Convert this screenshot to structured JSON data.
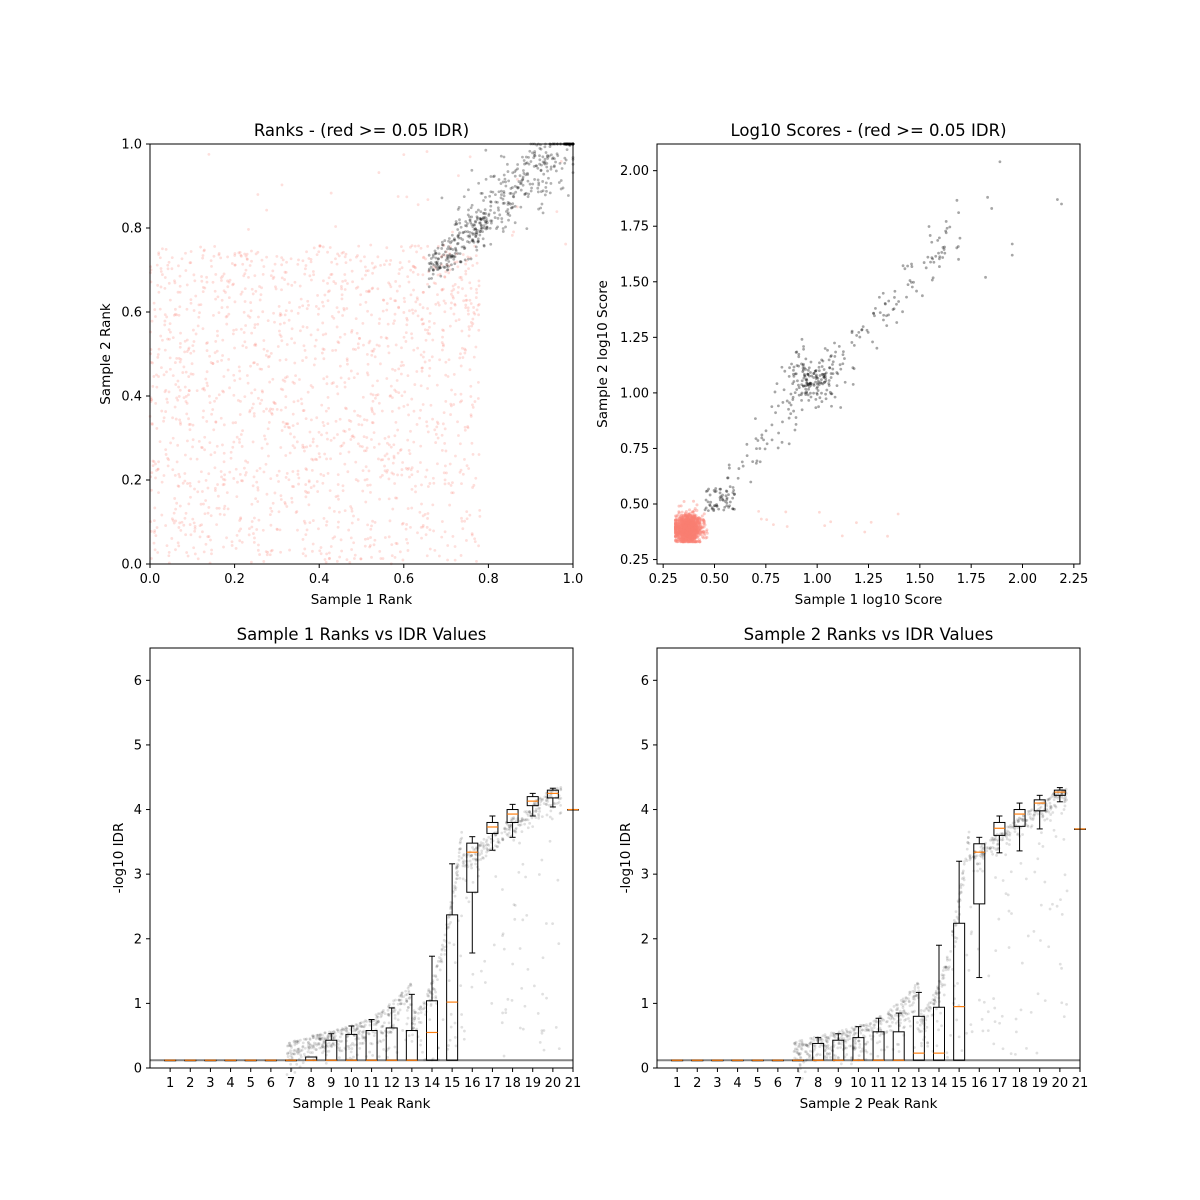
{
  "colors": {
    "black": "#000000",
    "salmon": "#fa8072",
    "median": "#ff7f0e",
    "background": "#ffffff"
  },
  "chart_data": [
    {
      "type": "scatter",
      "title": "Ranks - (red >= 0.05 IDR)",
      "xlabel": "Sample 1 Rank",
      "ylabel": "Sample 2 Rank",
      "xlim": [
        0,
        1
      ],
      "ylim": [
        0,
        1
      ],
      "xticks": [
        "0.0",
        "0.2",
        "0.4",
        "0.6",
        "0.8",
        "1.0"
      ],
      "yticks": [
        "0.0",
        "0.2",
        "0.4",
        "0.6",
        "0.8",
        "1.0"
      ],
      "grid": false,
      "series": [
        {
          "color": "#fa8072",
          "alpha": 0.25,
          "x_range": [
            0.0,
            0.78
          ],
          "y_range": [
            0.0,
            0.78
          ],
          "count": 1600,
          "pattern": "uniform-lower-triangle-bias"
        },
        {
          "color": "#000000",
          "alpha": 0.3,
          "x_range": [
            0.67,
            1.0
          ],
          "y_range": [
            0.67,
            1.0
          ],
          "count": 520,
          "pattern": "diagonal-band"
        }
      ]
    },
    {
      "type": "scatter",
      "title": "Log10 Scores - (red >= 0.05 IDR)",
      "xlabel": "Sample 1 log10 Score",
      "ylabel": "Sample 2 log10 Score",
      "xlim": [
        0.22,
        2.28
      ],
      "ylim": [
        0.23,
        2.12
      ],
      "xticks": [
        "0.25",
        "0.50",
        "0.75",
        "1.00",
        "1.25",
        "1.50",
        "1.75",
        "2.00",
        "2.25"
      ],
      "yticks": [
        "0.25",
        "0.50",
        "0.75",
        "1.00",
        "1.25",
        "1.50",
        "1.75",
        "2.00"
      ],
      "grid": false,
      "series": [
        {
          "color": "#fa8072",
          "alpha": 0.4,
          "center": [
            0.37,
            0.39
          ],
          "spread": [
            0.04,
            0.04
          ],
          "count": 1200,
          "pattern": "dense-cluster"
        },
        {
          "color": "#000000",
          "alpha": 0.35,
          "center": [
            0.98,
            1.06
          ],
          "spread": [
            0.07,
            0.06
          ],
          "count": 380,
          "pattern": "cluster-plus-diagonal"
        }
      ]
    },
    {
      "type": "box",
      "title": "Sample 1 Ranks vs IDR Values",
      "xlabel": "Sample 1 Peak Rank",
      "ylabel": "-log10 IDR",
      "xlim": [
        0,
        21
      ],
      "ylim": [
        0,
        6.5
      ],
      "xticks": [
        "1",
        "2",
        "3",
        "4",
        "5",
        "6",
        "7",
        "8",
        "9",
        "10",
        "11",
        "12",
        "13",
        "14",
        "15",
        "16",
        "17",
        "18",
        "19",
        "20",
        "21"
      ],
      "yticks": [
        "0",
        "1",
        "2",
        "3",
        "4",
        "5",
        "6"
      ],
      "grid": false,
      "boxes": [
        {
          "pos": 1,
          "q1": 0.12,
          "median": 0.12,
          "q3": 0.12,
          "whisker_low": 0.12,
          "whisker_high": 0.12
        },
        {
          "pos": 2,
          "q1": 0.12,
          "median": 0.12,
          "q3": 0.12,
          "whisker_low": 0.12,
          "whisker_high": 0.12
        },
        {
          "pos": 3,
          "q1": 0.12,
          "median": 0.12,
          "q3": 0.12,
          "whisker_low": 0.12,
          "whisker_high": 0.12
        },
        {
          "pos": 4,
          "q1": 0.12,
          "median": 0.12,
          "q3": 0.12,
          "whisker_low": 0.12,
          "whisker_high": 0.12
        },
        {
          "pos": 5,
          "q1": 0.12,
          "median": 0.12,
          "q3": 0.12,
          "whisker_low": 0.12,
          "whisker_high": 0.12
        },
        {
          "pos": 6,
          "q1": 0.12,
          "median": 0.12,
          "q3": 0.12,
          "whisker_low": 0.12,
          "whisker_high": 0.12
        },
        {
          "pos": 7,
          "q1": 0.12,
          "median": 0.12,
          "q3": 0.12,
          "whisker_low": 0.12,
          "whisker_high": 0.12
        },
        {
          "pos": 8,
          "q1": 0.12,
          "median": 0.12,
          "q3": 0.17,
          "whisker_low": 0.12,
          "whisker_high": 0.17
        },
        {
          "pos": 9,
          "q1": 0.12,
          "median": 0.12,
          "q3": 0.43,
          "whisker_low": 0.12,
          "whisker_high": 0.53
        },
        {
          "pos": 10,
          "q1": 0.12,
          "median": 0.12,
          "q3": 0.52,
          "whisker_low": 0.12,
          "whisker_high": 0.65
        },
        {
          "pos": 11,
          "q1": 0.12,
          "median": 0.12,
          "q3": 0.58,
          "whisker_low": 0.12,
          "whisker_high": 0.75
        },
        {
          "pos": 12,
          "q1": 0.12,
          "median": 0.12,
          "q3": 0.62,
          "whisker_low": 0.12,
          "whisker_high": 0.93
        },
        {
          "pos": 13,
          "q1": 0.12,
          "median": 0.12,
          "q3": 0.58,
          "whisker_low": 0.12,
          "whisker_high": 1.14
        },
        {
          "pos": 14,
          "q1": 0.12,
          "median": 0.55,
          "q3": 1.04,
          "whisker_low": 0.12,
          "whisker_high": 1.73
        },
        {
          "pos": 15,
          "q1": 0.12,
          "median": 1.02,
          "q3": 2.37,
          "whisker_low": 0.12,
          "whisker_high": 3.16
        },
        {
          "pos": 16,
          "q1": 2.72,
          "median": 3.34,
          "q3": 3.48,
          "whisker_low": 1.78,
          "whisker_high": 3.58
        },
        {
          "pos": 17,
          "q1": 3.63,
          "median": 3.73,
          "q3": 3.8,
          "whisker_low": 3.37,
          "whisker_high": 3.9
        },
        {
          "pos": 18,
          "q1": 3.8,
          "median": 3.93,
          "q3": 4.0,
          "whisker_low": 3.57,
          "whisker_high": 4.08
        },
        {
          "pos": 19,
          "q1": 4.06,
          "median": 4.13,
          "q3": 4.2,
          "whisker_low": 3.9,
          "whisker_high": 4.25
        },
        {
          "pos": 20,
          "q1": 4.18,
          "median": 4.25,
          "q3": 4.3,
          "whisker_low": 4.04,
          "whisker_high": 4.33
        },
        {
          "pos": 21,
          "q1": 4.0,
          "median": 4.0,
          "q3": 4.0,
          "whisker_low": 4.0,
          "whisker_high": 4.0
        }
      ]
    },
    {
      "type": "box",
      "title": "Sample 2 Ranks vs IDR Values",
      "xlabel": "Sample 2 Peak Rank",
      "ylabel": "-log10 IDR",
      "xlim": [
        0,
        21
      ],
      "ylim": [
        0,
        6.5
      ],
      "xticks": [
        "1",
        "2",
        "3",
        "4",
        "5",
        "6",
        "7",
        "8",
        "9",
        "10",
        "11",
        "12",
        "13",
        "14",
        "15",
        "16",
        "17",
        "18",
        "19",
        "20",
        "21"
      ],
      "yticks": [
        "0",
        "1",
        "2",
        "3",
        "4",
        "5",
        "6"
      ],
      "grid": false,
      "boxes": [
        {
          "pos": 1,
          "q1": 0.12,
          "median": 0.12,
          "q3": 0.12,
          "whisker_low": 0.12,
          "whisker_high": 0.12
        },
        {
          "pos": 2,
          "q1": 0.12,
          "median": 0.12,
          "q3": 0.12,
          "whisker_low": 0.12,
          "whisker_high": 0.12
        },
        {
          "pos": 3,
          "q1": 0.12,
          "median": 0.12,
          "q3": 0.12,
          "whisker_low": 0.12,
          "whisker_high": 0.12
        },
        {
          "pos": 4,
          "q1": 0.12,
          "median": 0.12,
          "q3": 0.12,
          "whisker_low": 0.12,
          "whisker_high": 0.12
        },
        {
          "pos": 5,
          "q1": 0.12,
          "median": 0.12,
          "q3": 0.12,
          "whisker_low": 0.12,
          "whisker_high": 0.12
        },
        {
          "pos": 6,
          "q1": 0.12,
          "median": 0.12,
          "q3": 0.12,
          "whisker_low": 0.12,
          "whisker_high": 0.12
        },
        {
          "pos": 7,
          "q1": 0.12,
          "median": 0.12,
          "q3": 0.12,
          "whisker_low": 0.12,
          "whisker_high": 0.12
        },
        {
          "pos": 8,
          "q1": 0.12,
          "median": 0.12,
          "q3": 0.38,
          "whisker_low": 0.12,
          "whisker_high": 0.47
        },
        {
          "pos": 9,
          "q1": 0.12,
          "median": 0.12,
          "q3": 0.43,
          "whisker_low": 0.12,
          "whisker_high": 0.53
        },
        {
          "pos": 10,
          "q1": 0.12,
          "median": 0.12,
          "q3": 0.47,
          "whisker_low": 0.12,
          "whisker_high": 0.64
        },
        {
          "pos": 11,
          "q1": 0.12,
          "median": 0.12,
          "q3": 0.56,
          "whisker_low": 0.12,
          "whisker_high": 0.77
        },
        {
          "pos": 12,
          "q1": 0.12,
          "median": 0.12,
          "q3": 0.56,
          "whisker_low": 0.12,
          "whisker_high": 0.85
        },
        {
          "pos": 13,
          "q1": 0.12,
          "median": 0.23,
          "q3": 0.8,
          "whisker_low": 0.12,
          "whisker_high": 1.17
        },
        {
          "pos": 14,
          "q1": 0.12,
          "median": 0.23,
          "q3": 0.94,
          "whisker_low": 0.12,
          "whisker_high": 1.9
        },
        {
          "pos": 15,
          "q1": 0.12,
          "median": 0.95,
          "q3": 2.24,
          "whisker_low": 0.12,
          "whisker_high": 3.2
        },
        {
          "pos": 16,
          "q1": 2.54,
          "median": 3.34,
          "q3": 3.47,
          "whisker_low": 1.4,
          "whisker_high": 3.57
        },
        {
          "pos": 17,
          "q1": 3.6,
          "median": 3.71,
          "q3": 3.8,
          "whisker_low": 3.33,
          "whisker_high": 3.9
        },
        {
          "pos": 18,
          "q1": 3.74,
          "median": 3.93,
          "q3": 4.0,
          "whisker_low": 3.36,
          "whisker_high": 4.1
        },
        {
          "pos": 19,
          "q1": 3.98,
          "median": 4.1,
          "q3": 4.15,
          "whisker_low": 3.7,
          "whisker_high": 4.22
        },
        {
          "pos": 20,
          "q1": 4.22,
          "median": 4.27,
          "q3": 4.3,
          "whisker_low": 4.12,
          "whisker_high": 4.34
        },
        {
          "pos": 21,
          "q1": 3.7,
          "median": 3.7,
          "q3": 3.7,
          "whisker_low": 3.7,
          "whisker_high": 3.7
        }
      ]
    }
  ]
}
